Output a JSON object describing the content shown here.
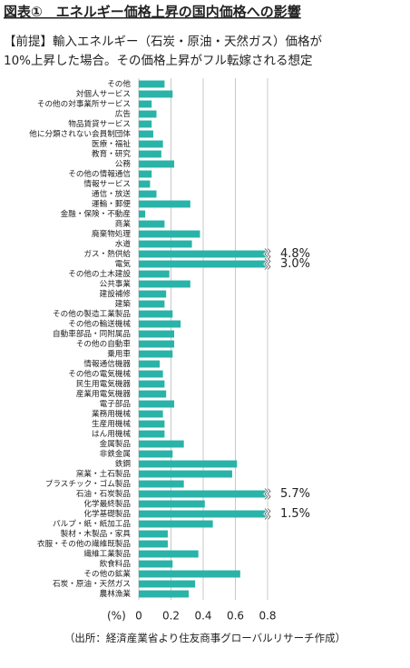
{
  "title": "図表①　エネルギー価格上昇の国内価格への影響",
  "subtitle_lines": [
    "【前提】輸入エネルギー（石炭・原油・天然ガス）価格が",
    "10%上昇した場合。その価格上昇がフル転嫁される想定"
  ],
  "source": "（出所：経済産業省より住友商事グローバルリサーチ作成）",
  "chart_data": {
    "type": "hbar",
    "x_label": "(%)",
    "categories": [
      "その他",
      "対個人サービス",
      "その他の対事業所サービス",
      "広告",
      "物品賃貸サービス",
      "他に分類されない会員制団体",
      "医療・福祉",
      "教育・研究",
      "公務",
      "その他の情報通信",
      "情報サービス",
      "通信・放送",
      "運輸・郵便",
      "金融・保険・不動産",
      "商業",
      "廃棄物処理",
      "水道",
      "ガス・熱供給",
      "電気",
      "その他の土木建設",
      "公共事業",
      "建設補修",
      "建築",
      "その他の製造工業製品",
      "その他の輸送機械",
      "自動車部品・同附属品",
      "その他の自動車",
      "乗用車",
      "情報通信機器",
      "その他の電気機械",
      "民生用電気機器",
      "産業用電気機器",
      "電子部品",
      "業務用機械",
      "生産用機械",
      "はん用機械",
      "金属製品",
      "非鉄金属",
      "鉄鋼",
      "窯業・土石製品",
      "プラスチック・ゴム製品",
      "石油・石炭製品",
      "化学最終製品",
      "化学基礎製品",
      "パルプ・紙・紙加工品",
      "製材・木製品・家具",
      "衣服・その他の繊維既製品",
      "繊維工業製品",
      "飲食料品",
      "その他の鉱業",
      "石炭・原油・天然ガス",
      "農林漁業"
    ],
    "values": [
      0.16,
      0.21,
      0.08,
      0.11,
      0.08,
      0.09,
      0.15,
      0.14,
      0.22,
      0.08,
      0.07,
      0.11,
      0.32,
      0.04,
      0.16,
      0.38,
      0.33,
      4.8,
      3.0,
      0.19,
      0.32,
      0.17,
      0.16,
      0.21,
      0.26,
      0.22,
      0.22,
      0.21,
      0.13,
      0.15,
      0.16,
      0.17,
      0.22,
      0.15,
      0.16,
      0.16,
      0.28,
      0.21,
      0.61,
      0.58,
      0.28,
      5.7,
      0.41,
      1.5,
      0.46,
      0.18,
      0.18,
      0.37,
      0.21,
      0.63,
      0.35,
      0.31
    ],
    "value_labels": [
      null,
      null,
      null,
      null,
      null,
      null,
      null,
      null,
      null,
      null,
      null,
      null,
      null,
      null,
      null,
      null,
      null,
      "4.8%",
      "3.0%",
      null,
      null,
      null,
      null,
      null,
      null,
      null,
      null,
      null,
      null,
      null,
      null,
      null,
      null,
      null,
      null,
      null,
      null,
      null,
      null,
      null,
      null,
      "5.7%",
      null,
      "1.5%",
      null,
      null,
      null,
      null,
      null,
      null,
      null,
      null
    ],
    "color": "#2ab3a8",
    "xlim": [
      0,
      0.8
    ],
    "xticks": [
      0,
      0.2,
      0.4,
      0.6,
      0.8
    ],
    "grid": true
  }
}
